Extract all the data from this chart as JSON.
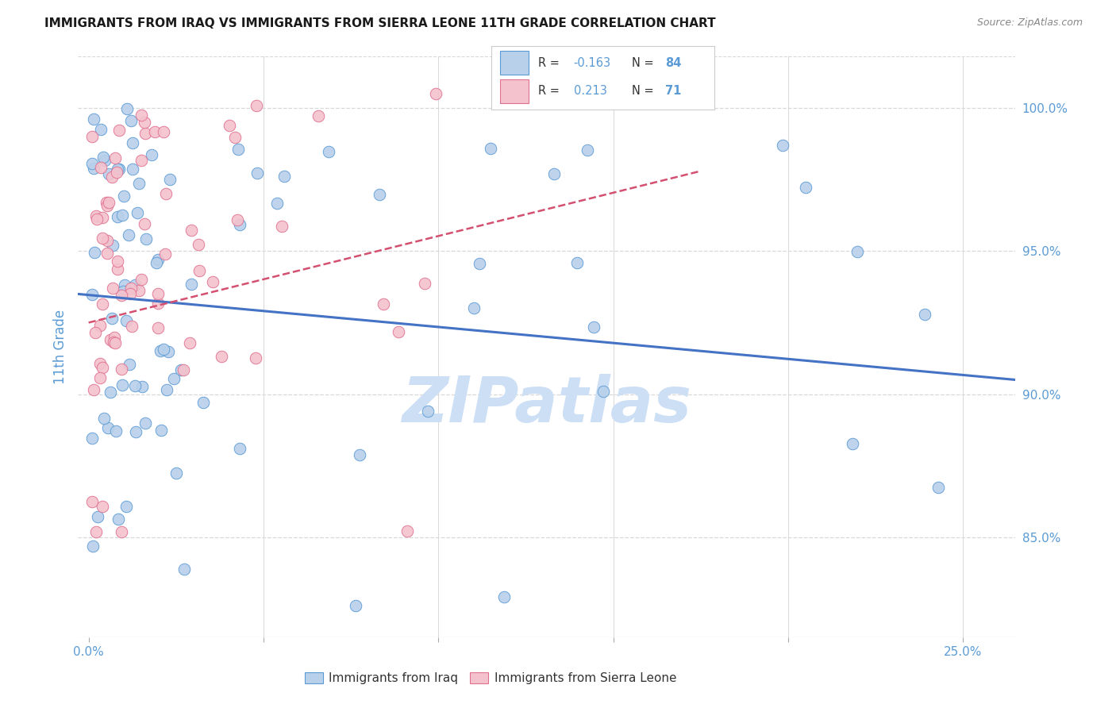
{
  "title": "IMMIGRANTS FROM IRAQ VS IMMIGRANTS FROM SIERRA LEONE 11TH GRADE CORRELATION CHART",
  "source": "Source: ZipAtlas.com",
  "ylabel": "11th Grade",
  "xlim": [
    -0.003,
    0.265
  ],
  "ylim": [
    0.815,
    1.018
  ],
  "x_ticks": [
    0.0,
    0.05,
    0.1,
    0.15,
    0.2,
    0.25
  ],
  "y_ticks": [
    0.85,
    0.9,
    0.95,
    1.0
  ],
  "R_iraq": -0.163,
  "N_iraq": 84,
  "R_sierra": 0.213,
  "N_sierra": 71,
  "iraq_fill": "#b8d0ea",
  "iraq_edge": "#5b9bd5",
  "iraq_line": "#4472c4",
  "sierra_fill": "#f4c2cc",
  "sierra_edge": "#e07090",
  "sierra_line": "#d45070",
  "watermark_color": "#cddff5",
  "title_color": "#1a1a1a",
  "axis_color": "#5b9bd5",
  "grid_color": "#d8d8d8",
  "background_color": "#ffffff",
  "legend_border": "#cccccc",
  "iraq_trend_y0": 0.935,
  "iraq_trend_y1": 0.905,
  "sierra_trend_x0": 0.0,
  "sierra_trend_x1": 0.175,
  "sierra_trend_y0": 0.925,
  "sierra_trend_y1": 0.978
}
